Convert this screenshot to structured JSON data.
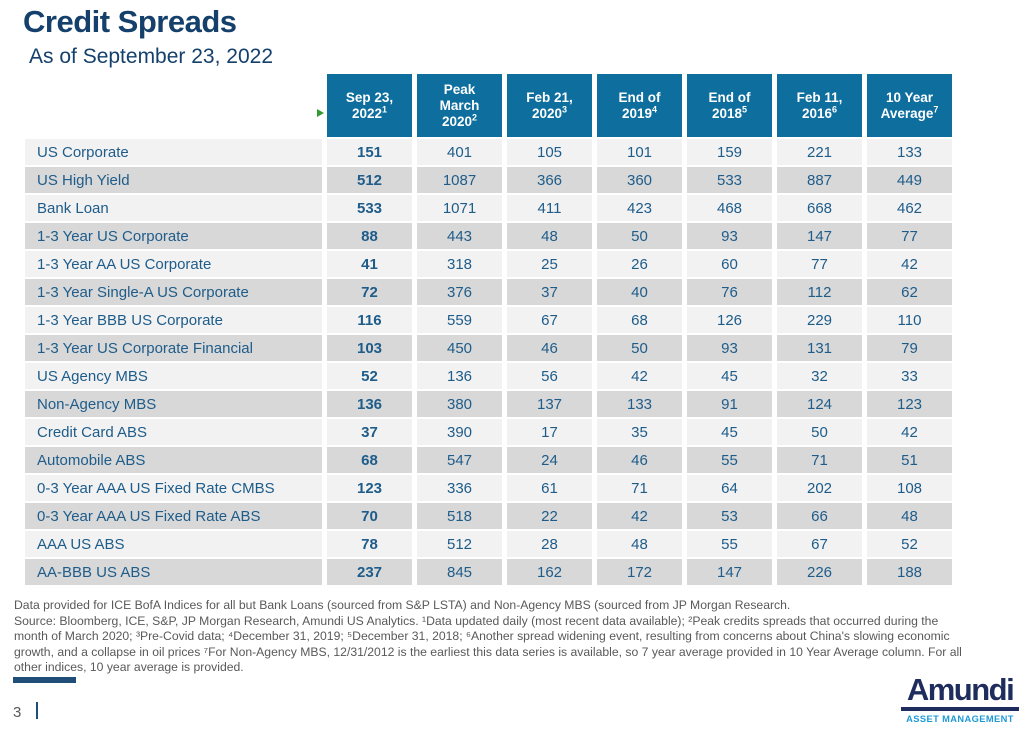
{
  "page": {
    "title": "Credit Spreads",
    "subtitle": "As of September 23, 2022",
    "page_number": "3"
  },
  "table": {
    "columns": [
      {
        "lines": [
          "Sep 23,",
          "2022"
        ],
        "sup": "1"
      },
      {
        "lines": [
          "Peak",
          "March",
          "2020"
        ],
        "sup": "2"
      },
      {
        "lines": [
          "Feb 21,",
          "2020"
        ],
        "sup": "3"
      },
      {
        "lines": [
          "End of",
          "2019"
        ],
        "sup": "4"
      },
      {
        "lines": [
          "End of",
          "2018"
        ],
        "sup": "5"
      },
      {
        "lines": [
          "Feb 11,",
          "2016"
        ],
        "sup": "6"
      },
      {
        "lines": [
          "10 Year",
          "Average"
        ],
        "sup": "7"
      }
    ],
    "rows": [
      {
        "label": "US Corporate",
        "values": [
          151,
          401,
          105,
          101,
          159,
          221,
          133
        ]
      },
      {
        "label": "US High Yield",
        "values": [
          512,
          1087,
          366,
          360,
          533,
          887,
          449
        ]
      },
      {
        "label": "Bank Loan",
        "values": [
          533,
          1071,
          411,
          423,
          468,
          668,
          462
        ]
      },
      {
        "label": "1-3 Year US Corporate",
        "values": [
          88,
          443,
          48,
          50,
          93,
          147,
          77
        ]
      },
      {
        "label": "1-3 Year AA US Corporate",
        "values": [
          41,
          318,
          25,
          26,
          60,
          77,
          42
        ]
      },
      {
        "label": "1-3 Year Single-A US Corporate",
        "values": [
          72,
          376,
          37,
          40,
          76,
          112,
          62
        ]
      },
      {
        "label": "1-3 Year BBB US Corporate",
        "values": [
          116,
          559,
          67,
          68,
          126,
          229,
          110
        ]
      },
      {
        "label": "1-3 Year US Corporate Financial",
        "values": [
          103,
          450,
          46,
          50,
          93,
          131,
          79
        ]
      },
      {
        "label": "US Agency MBS",
        "values": [
          52,
          136,
          56,
          42,
          45,
          32,
          33
        ]
      },
      {
        "label": "Non-Agency MBS",
        "values": [
          136,
          380,
          137,
          133,
          91,
          124,
          123
        ]
      },
      {
        "label": "Credit Card ABS",
        "values": [
          37,
          390,
          17,
          35,
          45,
          50,
          42
        ]
      },
      {
        "label": "Automobile ABS",
        "values": [
          68,
          547,
          24,
          46,
          55,
          71,
          51
        ]
      },
      {
        "label": "0-3 Year AAA US Fixed Rate CMBS",
        "values": [
          123,
          336,
          61,
          71,
          64,
          202,
          108
        ]
      },
      {
        "label": "0-3 Year AAA US Fixed Rate ABS",
        "values": [
          70,
          518,
          22,
          42,
          53,
          66,
          48
        ]
      },
      {
        "label": "AAA US ABS",
        "values": [
          78,
          512,
          28,
          48,
          55,
          67,
          52
        ]
      },
      {
        "label": "AA-BBB US ABS",
        "values": [
          237,
          845,
          162,
          172,
          147,
          226,
          188
        ]
      }
    ]
  },
  "footnotes": {
    "lines": [
      "Data provided for ICE BofA Indices for all but Bank Loans (sourced from S&P LSTA) and Non-Agency MBS (sourced from JP Morgan Research.",
      "Source: Bloomberg, ICE, S&P, JP Morgan Research, Amundi US Analytics. ¹Data updated daily (most recent data available); ²Peak credits spreads that occurred during the",
      "month of March 2020; ³Pre-Covid data; ⁴December 31, 2019; ⁵December 31, 2018; ⁶Another spread widening event, resulting from concerns about China's slowing economic",
      "growth, and a collapse in oil prices ⁷For Non-Agency MBS, 12/31/2012 is the earliest this data series is available, so 7 year average provided in 10 Year Average column. For all",
      "other indices, 10 year average is provided."
    ]
  },
  "logo": {
    "wordmark": "Amundi",
    "tagline": "ASSET MANAGEMENT"
  },
  "colors": {
    "header_bg": "#0E6E9E",
    "title_navy": "#14406B",
    "cell_text": "#1E5C8A",
    "stripe_light": "#F2F2F2",
    "stripe_dark": "#D8D8D8",
    "footnote_gray": "#595959",
    "accent_bar_navy": "#1F4E79",
    "logo_navy": "#1E2C5E",
    "logo_blue": "#1D9AD6",
    "marker_green": "#339933"
  }
}
